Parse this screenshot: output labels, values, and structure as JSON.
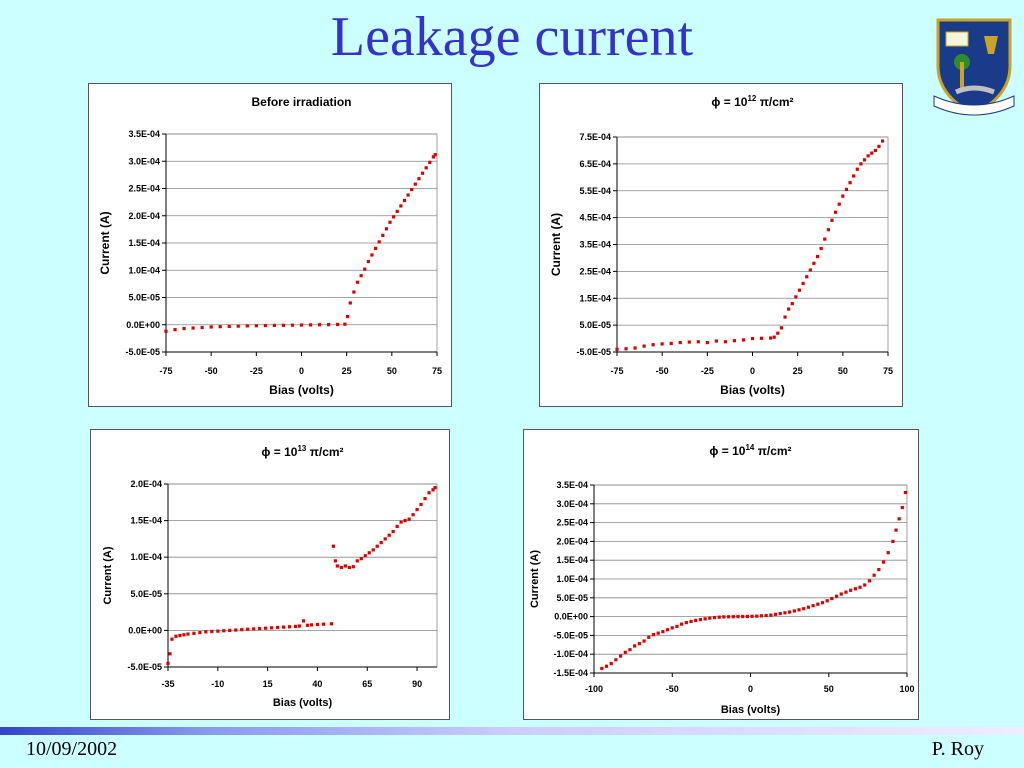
{
  "slide": {
    "title": "Leakage current",
    "footer_date": "10/09/2002",
    "footer_author": "P. Roy",
    "colors": {
      "title": "#3333cc",
      "background": "#ccffff",
      "data_points": "#dd0000"
    }
  },
  "chart_data": [
    {
      "type": "scatter",
      "title_main": "Before irradiation",
      "title_sup": "",
      "title_end": "",
      "xlabel": "Bias (volts)",
      "ylabel": "Current (A)",
      "xlim": [
        -75,
        75
      ],
      "ylim": [
        -5e-05,
        0.00035
      ],
      "xticks": [
        "-75",
        "-50",
        "-25",
        "0",
        "25",
        "50",
        "75"
      ],
      "yticks": [
        "-5.0E-05",
        "0.0E+00",
        "5.0E-05",
        "1.0E-04",
        "1.5E-04",
        "2.0E-04",
        "2.5E-04",
        "3.0E-04",
        "3.5E-04"
      ],
      "grid": true,
      "series": [
        {
          "color": "#dd0000",
          "points": [
            [
              -75,
              -1.2e-05
            ],
            [
              -70,
              -9e-06
            ],
            [
              -65,
              -7e-06
            ],
            [
              -60,
              -6e-06
            ],
            [
              -55,
              -5e-06
            ],
            [
              -50,
              -4e-06
            ],
            [
              -45,
              -3.5e-06
            ],
            [
              -40,
              -3e-06
            ],
            [
              -35,
              -2.5e-06
            ],
            [
              -30,
              -2e-06
            ],
            [
              -25,
              -1.8e-06
            ],
            [
              -20,
              -1.5e-06
            ],
            [
              -15,
              -1.2e-06
            ],
            [
              -10,
              -1e-06
            ],
            [
              -5,
              -8e-07
            ],
            [
              0,
              -5e-07
            ],
            [
              5,
              -3e-07
            ],
            [
              10,
              0
            ],
            [
              15,
              2e-07
            ],
            [
              20,
              5e-07
            ],
            [
              24,
              1e-06
            ],
            [
              25.5,
              1.5e-05
            ],
            [
              27,
              4e-05
            ],
            [
              29,
              6e-05
            ],
            [
              31,
              7.8e-05
            ],
            [
              33,
              9e-05
            ],
            [
              35,
              0.000102
            ],
            [
              37,
              0.000116
            ],
            [
              39,
              0.000128
            ],
            [
              41,
              0.00014
            ],
            [
              43,
              0.000152
            ],
            [
              45,
              0.000164
            ],
            [
              47,
              0.000176
            ],
            [
              49,
              0.000188
            ],
            [
              51,
              0.000198
            ],
            [
              53,
              0.000208
            ],
            [
              55,
              0.000218
            ],
            [
              57,
              0.000228
            ],
            [
              59,
              0.000238
            ],
            [
              61,
              0.000248
            ],
            [
              63,
              0.000258
            ],
            [
              65,
              0.000268
            ],
            [
              67,
              0.000278
            ],
            [
              69,
              0.000288
            ],
            [
              71,
              0.000298
            ],
            [
              73,
              0.000308
            ],
            [
              74,
              0.000312
            ]
          ]
        }
      ]
    },
    {
      "type": "scatter",
      "title_main": "ϕ = 10",
      "title_sup": "12",
      "title_end": " π/cm²",
      "xlabel": "Bias (volts)",
      "ylabel": "Current (A)",
      "xlim": [
        -75,
        75
      ],
      "ylim": [
        -5e-05,
        0.00075
      ],
      "xticks": [
        "-75",
        "-50",
        "-25",
        "0",
        "25",
        "50",
        "75"
      ],
      "yticks": [
        "-5.0E-05",
        "5.0E-05",
        "1.5E-04",
        "2.5E-04",
        "3.5E-04",
        "4.5E-04",
        "5.5E-04",
        "6.5E-04",
        "7.5E-04"
      ],
      "grid": true,
      "series": [
        {
          "color": "#dd0000",
          "points": [
            [
              -75,
              -4e-05
            ],
            [
              -70,
              -3.8e-05
            ],
            [
              -65,
              -3.5e-05
            ],
            [
              -60,
              -2.8e-05
            ],
            [
              -55,
              -2.3e-05
            ],
            [
              -50,
              -2e-05
            ],
            [
              -45,
              -1.8e-05
            ],
            [
              -40,
              -1.5e-05
            ],
            [
              -35,
              -1.3e-05
            ],
            [
              -30,
              -1.2e-05
            ],
            [
              -25,
              -1.5e-05
            ],
            [
              -20,
              -9e-06
            ],
            [
              -15,
              -1.2e-05
            ],
            [
              -10,
              -8e-06
            ],
            [
              -5,
              -5e-06
            ],
            [
              0,
              0
            ],
            [
              5,
              1e-06
            ],
            [
              10,
              2e-06
            ],
            [
              12,
              5e-06
            ],
            [
              14,
              2e-05
            ],
            [
              16,
              4e-05
            ],
            [
              18,
              8e-05
            ],
            [
              20,
              0.00011
            ],
            [
              22,
              0.00013
            ],
            [
              24,
              0.000155
            ],
            [
              26,
              0.00018
            ],
            [
              28,
              0.000205
            ],
            [
              30,
              0.00023
            ],
            [
              32,
              0.000255
            ],
            [
              34,
              0.00028
            ],
            [
              36,
              0.000305
            ],
            [
              38,
              0.000335
            ],
            [
              40,
              0.00037
            ],
            [
              42,
              0.000405
            ],
            [
              44,
              0.00044
            ],
            [
              46,
              0.00047
            ],
            [
              48,
              0.0005
            ],
            [
              50,
              0.00053
            ],
            [
              52,
              0.000555
            ],
            [
              54,
              0.00058
            ],
            [
              56,
              0.000605
            ],
            [
              58,
              0.00063
            ],
            [
              60,
              0.00065
            ],
            [
              62,
              0.000665
            ],
            [
              64,
              0.00068
            ],
            [
              66,
              0.00069
            ],
            [
              68,
              0.0007
            ],
            [
              70,
              0.000715
            ],
            [
              72,
              0.000735
            ]
          ]
        }
      ]
    },
    {
      "type": "scatter",
      "title_main": "ϕ = 10",
      "title_sup": "13",
      "title_end": " π/cm²",
      "xlabel": "Bias (volts)",
      "ylabel": "Current (A)",
      "xlim": [
        -35,
        100
      ],
      "ylim": [
        -5e-05,
        0.0002
      ],
      "xticks": [
        "-35",
        "-10",
        "15",
        "40",
        "65",
        "90"
      ],
      "xtick_values": [
        -35,
        -10,
        15,
        40,
        65,
        90
      ],
      "yticks": [
        "-5.0E-05",
        "0.0E+00",
        "5.0E-05",
        "1.0E-04",
        "1.5E-04",
        "2.0E-04"
      ],
      "grid": true,
      "series": [
        {
          "color": "#dd0000",
          "points": [
            [
              -35,
              -4.5e-05
            ],
            [
              -34,
              -3.2e-05
            ],
            [
              -33,
              -1.2e-05
            ],
            [
              -31,
              -8e-06
            ],
            [
              -29,
              -7e-06
            ],
            [
              -27,
              -6e-06
            ],
            [
              -25,
              -5e-06
            ],
            [
              -22,
              -4e-06
            ],
            [
              -19,
              -3e-06
            ],
            [
              -16,
              -2e-06
            ],
            [
              -13,
              -1.5e-06
            ],
            [
              -10,
              -1e-06
            ],
            [
              -7,
              -5e-07
            ],
            [
              -4,
              0
            ],
            [
              -1,
              5e-07
            ],
            [
              2,
              1e-06
            ],
            [
              5,
              1.5e-06
            ],
            [
              8,
              2e-06
            ],
            [
              11,
              2.5e-06
            ],
            [
              14,
              3e-06
            ],
            [
              17,
              3.5e-06
            ],
            [
              20,
              4e-06
            ],
            [
              23,
              4.5e-06
            ],
            [
              26,
              5e-06
            ],
            [
              29,
              5.5e-06
            ],
            [
              31,
              6e-06
            ],
            [
              33,
              1.3e-05
            ],
            [
              35,
              7e-06
            ],
            [
              37,
              7.5e-06
            ],
            [
              40,
              8e-06
            ],
            [
              43,
              8.5e-06
            ],
            [
              47,
              9e-06
            ],
            [
              48,
              0.000115
            ],
            [
              49,
              9.5e-05
            ],
            [
              50,
              8.8e-05
            ],
            [
              52,
              8.6e-05
            ],
            [
              54,
              8.8e-05
            ],
            [
              56,
              8.6e-05
            ],
            [
              58,
              8.7e-05
            ],
            [
              60,
              9.5e-05
            ],
            [
              62,
              9.8e-05
            ],
            [
              64,
              0.000102
            ],
            [
              66,
              0.000106
            ],
            [
              68,
              0.00011
            ],
            [
              70,
              0.000115
            ],
            [
              72,
              0.00012
            ],
            [
              74,
              0.000125
            ],
            [
              76,
              0.00013
            ],
            [
              78,
              0.000135
            ],
            [
              80,
              0.000142
            ],
            [
              82,
              0.000148
            ],
            [
              84,
              0.00015
            ],
            [
              86,
              0.000152
            ],
            [
              88,
              0.000158
            ],
            [
              90,
              0.000165
            ],
            [
              92,
              0.000172
            ],
            [
              94,
              0.00018
            ],
            [
              96,
              0.000188
            ],
            [
              98,
              0.000192
            ],
            [
              99,
              0.000195
            ]
          ]
        }
      ]
    },
    {
      "type": "scatter",
      "title_main": "ϕ = 10",
      "title_sup": "14",
      "title_end": " π/cm²",
      "xlabel": "Bias (volts)",
      "ylabel": "Current (A)",
      "xlim": [
        -100,
        100
      ],
      "ylim": [
        -0.00015,
        0.00035
      ],
      "xticks": [
        "-100",
        "-50",
        "0",
        "50",
        "100"
      ],
      "yticks": [
        "-1.5E-04",
        "-1.0E-04",
        "-5.0E-05",
        "0.0E+00",
        "5.0E-05",
        "1.0E-04",
        "1.5E-04",
        "2.0E-04",
        "2.5E-04",
        "3.0E-04",
        "3.5E-04"
      ],
      "grid": true,
      "series": [
        {
          "color": "#dd0000",
          "points": [
            [
              -95,
              -0.000138
            ],
            [
              -92,
              -0.000132
            ],
            [
              -89,
              -0.000125
            ],
            [
              -86,
              -0.000115
            ],
            [
              -83,
              -0.000105
            ],
            [
              -80,
              -9.5e-05
            ],
            [
              -77,
              -8.8e-05
            ],
            [
              -74,
              -7.8e-05
            ],
            [
              -71,
              -7.2e-05
            ],
            [
              -68,
              -6.5e-05
            ],
            [
              -65,
              -5.5e-05
            ],
            [
              -62,
              -4.8e-05
            ],
            [
              -59,
              -4.4e-05
            ],
            [
              -56,
              -4e-05
            ],
            [
              -53,
              -3.5e-05
            ],
            [
              -50,
              -3e-05
            ],
            [
              -47,
              -2.6e-05
            ],
            [
              -44,
              -2e-05
            ],
            [
              -41,
              -1.6e-05
            ],
            [
              -38,
              -1.3e-05
            ],
            [
              -35,
              -1e-05
            ],
            [
              -32,
              -8e-06
            ],
            [
              -29,
              -6e-06
            ],
            [
              -26,
              -4e-06
            ],
            [
              -23,
              -2.5e-06
            ],
            [
              -20,
              -1.5e-06
            ],
            [
              -17,
              -8e-07
            ],
            [
              -14,
              -4e-07
            ],
            [
              -11,
              -2e-07
            ],
            [
              -8,
              0
            ],
            [
              -5,
              2e-07
            ],
            [
              -2,
              4e-07
            ],
            [
              1,
              8e-07
            ],
            [
              4,
              1.2e-06
            ],
            [
              7,
              2e-06
            ],
            [
              10,
              3e-06
            ],
            [
              13,
              4e-06
            ],
            [
              16,
              6e-06
            ],
            [
              19,
              8e-06
            ],
            [
              22,
              1e-05
            ],
            [
              25,
              1.2e-05
            ],
            [
              28,
              1.5e-05
            ],
            [
              31,
              1.8e-05
            ],
            [
              34,
              2.1e-05
            ],
            [
              37,
              2.5e-05
            ],
            [
              40,
              2.9e-05
            ],
            [
              43,
              3.3e-05
            ],
            [
              46,
              3.7e-05
            ],
            [
              49,
              4.2e-05
            ],
            [
              52,
              4.8e-05
            ],
            [
              55,
              5.4e-05
            ],
            [
              58,
              6e-05
            ],
            [
              61,
              6.5e-05
            ],
            [
              64,
              7e-05
            ],
            [
              67,
              7.4e-05
            ],
            [
              70,
              7.8e-05
            ],
            [
              73,
              8.4e-05
            ],
            [
              76,
              9.5e-05
            ],
            [
              79,
              0.00011
            ],
            [
              82,
              0.000125
            ],
            [
              85,
              0.000145
            ],
            [
              88,
              0.00017
            ],
            [
              91,
              0.0002
            ],
            [
              93,
              0.00023
            ],
            [
              95,
              0.00026
            ],
            [
              97,
              0.00029
            ],
            [
              99,
              0.00033
            ]
          ]
        }
      ]
    }
  ]
}
